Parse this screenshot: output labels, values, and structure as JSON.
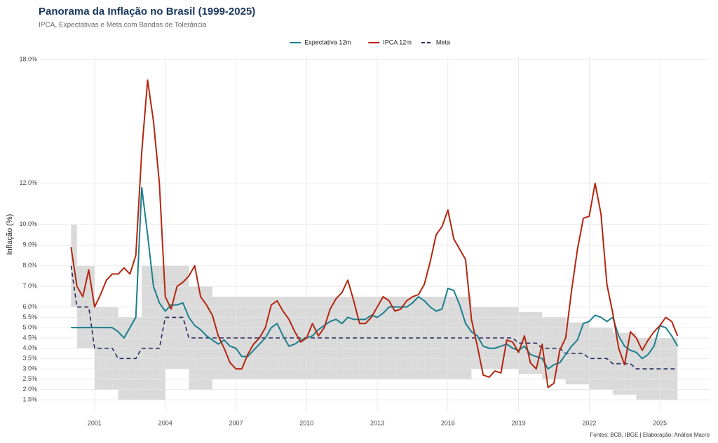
{
  "chart_data": {
    "type": "line",
    "title": "Panorama da Inflação no Brasil (1999-2025)",
    "subtitle": "IPCA, Expectativas e Meta com Bandas de Tolerância",
    "y_label": "Inflação (%)",
    "caption": "Fontes: BCB, IBGE | Elaboração: Análise Macro",
    "grid": true,
    "legend_position": "top",
    "xlim": [
      1998.68,
      2027.11
    ],
    "xticks": [
      2001,
      2004,
      2007,
      2010,
      2013,
      2016,
      2019,
      2022,
      2025
    ],
    "ylim": [
      0.9,
      18.1
    ],
    "yticks": [
      {
        "value": 1.5,
        "label": "1.5%"
      },
      {
        "value": 2,
        "label": "2.0%"
      },
      {
        "value": 2.5,
        "label": "2.5%"
      },
      {
        "value": 3,
        "label": "3.0%"
      },
      {
        "value": 3.5,
        "label": "3.5%"
      },
      {
        "value": 4,
        "label": "4.0%"
      },
      {
        "value": 4.5,
        "label": "4.5%"
      },
      {
        "value": 5,
        "label": "5.0%"
      },
      {
        "value": 5.5,
        "label": "5.5%"
      },
      {
        "value": 6,
        "label": "6.0%"
      },
      {
        "value": 7,
        "label": "7.0%"
      },
      {
        "value": 8,
        "label": "8.0%"
      },
      {
        "value": 9,
        "label": "9.0%"
      },
      {
        "value": 10,
        "label": "10.0%"
      },
      {
        "value": 12,
        "label": "12.0%"
      },
      {
        "value": 18,
        "label": "18.0%"
      }
    ],
    "x": [
      2000,
      2000.25,
      2000.5,
      2000.75,
      2001,
      2001.25,
      2001.5,
      2001.75,
      2002,
      2002.25,
      2002.5,
      2002.75,
      2003,
      2003.25,
      2003.5,
      2003.75,
      2004,
      2004.25,
      2004.5,
      2004.75,
      2005,
      2005.25,
      2005.5,
      2005.75,
      2006,
      2006.25,
      2006.5,
      2006.75,
      2007,
      2007.25,
      2007.5,
      2007.75,
      2008,
      2008.25,
      2008.5,
      2008.75,
      2009,
      2009.25,
      2009.5,
      2009.75,
      2010,
      2010.25,
      2010.5,
      2010.75,
      2011,
      2011.25,
      2011.5,
      2011.75,
      2012,
      2012.25,
      2012.5,
      2012.75,
      2013,
      2013.25,
      2013.5,
      2013.75,
      2014,
      2014.25,
      2014.5,
      2014.75,
      2015,
      2015.25,
      2015.5,
      2015.75,
      2016,
      2016.25,
      2016.5,
      2016.75,
      2017,
      2017.25,
      2017.5,
      2017.75,
      2018,
      2018.25,
      2018.5,
      2018.75,
      2019,
      2019.25,
      2019.5,
      2019.75,
      2020,
      2020.25,
      2020.5,
      2020.75,
      2021,
      2021.25,
      2021.5,
      2021.75,
      2022,
      2022.25,
      2022.5,
      2022.75,
      2023,
      2023.25,
      2023.5,
      2023.75,
      2024,
      2024.25,
      2024.5,
      2024.75,
      2025,
      2025.25,
      2025.5,
      2025.75
    ],
    "band": {
      "color": "#dadada",
      "lower": [
        6,
        4,
        4,
        4,
        2,
        2,
        2,
        2,
        1.5,
        1.5,
        1.5,
        1.5,
        1.5,
        1.5,
        1.5,
        1.5,
        3,
        3,
        3,
        3,
        2,
        2,
        2,
        2,
        2.5,
        2.5,
        2.5,
        2.5,
        2.5,
        2.5,
        2.5,
        2.5,
        2.5,
        2.5,
        2.5,
        2.5,
        2.5,
        2.5,
        2.5,
        2.5,
        2.5,
        2.5,
        2.5,
        2.5,
        2.5,
        2.5,
        2.5,
        2.5,
        2.5,
        2.5,
        2.5,
        2.5,
        2.5,
        2.5,
        2.5,
        2.5,
        2.5,
        2.5,
        2.5,
        2.5,
        2.5,
        2.5,
        2.5,
        2.5,
        2.5,
        2.5,
        2.5,
        2.5,
        3,
        3,
        3,
        3,
        3,
        3,
        3,
        3,
        2.75,
        2.75,
        2.75,
        2.75,
        2.5,
        2.5,
        2.5,
        2.5,
        2.25,
        2.25,
        2.25,
        2.25,
        2,
        2,
        2,
        2,
        1.75,
        1.75,
        1.75,
        1.75,
        1.5,
        1.5,
        1.5,
        1.5,
        1.5,
        1.5,
        1.5,
        1.5
      ],
      "upper": [
        10,
        8,
        8,
        8,
        6,
        6,
        6,
        6,
        5.5,
        5.5,
        5.5,
        5.5,
        8,
        8,
        8,
        8,
        8,
        8,
        8,
        8,
        7,
        7,
        7,
        7,
        6.5,
        6.5,
        6.5,
        6.5,
        6.5,
        6.5,
        6.5,
        6.5,
        6.5,
        6.5,
        6.5,
        6.5,
        6.5,
        6.5,
        6.5,
        6.5,
        6.5,
        6.5,
        6.5,
        6.5,
        6.5,
        6.5,
        6.5,
        6.5,
        6.5,
        6.5,
        6.5,
        6.5,
        6.5,
        6.5,
        6.5,
        6.5,
        6.5,
        6.5,
        6.5,
        6.5,
        6.5,
        6.5,
        6.5,
        6.5,
        6.5,
        6.5,
        6.5,
        6.5,
        6,
        6,
        6,
        6,
        6,
        6,
        6,
        6,
        5.75,
        5.75,
        5.75,
        5.75,
        5.5,
        5.5,
        5.5,
        5.5,
        5.25,
        5.25,
        5.25,
        5.25,
        5,
        5,
        5,
        5,
        4.75,
        4.75,
        4.75,
        4.75,
        4.5,
        4.5,
        4.5,
        4.5,
        4.5,
        4.5,
        4.5,
        4.5
      ]
    },
    "series": [
      {
        "name": "Expectativa 12m",
        "color": "#1b7f8e",
        "line_style": "solid",
        "values": [
          5,
          5,
          5,
          5,
          5,
          5,
          5,
          5,
          4.8,
          4.5,
          5,
          5.5,
          11.8,
          9.5,
          7,
          6.2,
          5.8,
          6.1,
          6.1,
          6.2,
          5.5,
          5.1,
          4.9,
          4.6,
          4.4,
          4.2,
          4.4,
          4.1,
          4,
          3.6,
          3.6,
          3.9,
          4.2,
          4.5,
          5,
          5.2,
          4.6,
          4.1,
          4.2,
          4.4,
          4.5,
          4.6,
          4.9,
          5.1,
          5.3,
          5.4,
          5.2,
          5.5,
          5.4,
          5.4,
          5.4,
          5.6,
          5.5,
          5.7,
          6,
          6,
          6,
          6,
          6.2,
          6.5,
          6.3,
          6,
          5.8,
          5.9,
          6.9,
          6.8,
          6.1,
          5.2,
          4.8,
          4.6,
          4.1,
          4,
          4,
          4.1,
          4.2,
          4,
          3.9,
          4.1,
          3.7,
          3.6,
          3.5,
          3,
          3.2,
          3.3,
          3.7,
          4.1,
          4.4,
          5.2,
          5.3,
          5.6,
          5.5,
          5.3,
          5.5,
          4.6,
          4.1,
          3.9,
          3.8,
          3.5,
          3.7,
          4.1,
          5.1,
          5,
          4.6,
          4.1
        ]
      },
      {
        "name": "IPCA 12m",
        "color": "#b3260f",
        "line_style": "solid",
        "values": [
          8.9,
          7,
          6.5,
          7.8,
          6,
          6.6,
          7.3,
          7.6,
          7.6,
          7.9,
          7.6,
          8.5,
          13.5,
          17,
          15,
          12,
          6.5,
          5.9,
          7,
          7.2,
          7.5,
          8,
          6.5,
          6.1,
          5.6,
          4.6,
          4,
          3.3,
          3,
          3,
          3.7,
          4.2,
          4.5,
          5,
          6.1,
          6.3,
          5.8,
          5.4,
          4.8,
          4.3,
          4.5,
          5.2,
          4.6,
          5,
          5.9,
          6.4,
          6.7,
          7.3,
          6.3,
          5.2,
          5.2,
          5.5,
          6,
          6.5,
          6.3,
          5.8,
          5.9,
          6.3,
          6.5,
          6.6,
          7.1,
          8.2,
          9.5,
          9.9,
          10.7,
          9.3,
          8.8,
          8.3,
          5.4,
          4.1,
          2.7,
          2.6,
          2.9,
          2.8,
          4.4,
          4.3,
          3.8,
          4.6,
          3.3,
          3,
          4.2,
          2.1,
          2.3,
          3.9,
          4.5,
          6.8,
          8.8,
          10.3,
          10.4,
          12,
          10.5,
          7.1,
          5.7,
          4,
          3.2,
          4.8,
          4.5,
          3.9,
          4.4,
          4.8,
          5.1,
          5.5,
          5.3,
          4.6
        ]
      },
      {
        "name": "Meta",
        "color": "#272a63",
        "line_style": "dashed",
        "values": [
          8,
          6,
          6,
          6,
          4,
          4,
          4,
          4,
          3.5,
          3.5,
          3.5,
          3.5,
          4,
          4,
          4,
          4,
          5.5,
          5.5,
          5.5,
          5.5,
          4.5,
          4.5,
          4.5,
          4.5,
          4.5,
          4.5,
          4.5,
          4.5,
          4.5,
          4.5,
          4.5,
          4.5,
          4.5,
          4.5,
          4.5,
          4.5,
          4.5,
          4.5,
          4.5,
          4.5,
          4.5,
          4.5,
          4.5,
          4.5,
          4.5,
          4.5,
          4.5,
          4.5,
          4.5,
          4.5,
          4.5,
          4.5,
          4.5,
          4.5,
          4.5,
          4.5,
          4.5,
          4.5,
          4.5,
          4.5,
          4.5,
          4.5,
          4.5,
          4.5,
          4.5,
          4.5,
          4.5,
          4.5,
          4.5,
          4.5,
          4.5,
          4.5,
          4.5,
          4.5,
          4.5,
          4.5,
          4.25,
          4.25,
          4.25,
          4.25,
          4,
          4,
          4,
          4,
          3.75,
          3.75,
          3.75,
          3.75,
          3.5,
          3.5,
          3.5,
          3.5,
          3.25,
          3.25,
          3.25,
          3.25,
          3,
          3,
          3,
          3,
          3,
          3,
          3,
          3
        ]
      }
    ]
  }
}
